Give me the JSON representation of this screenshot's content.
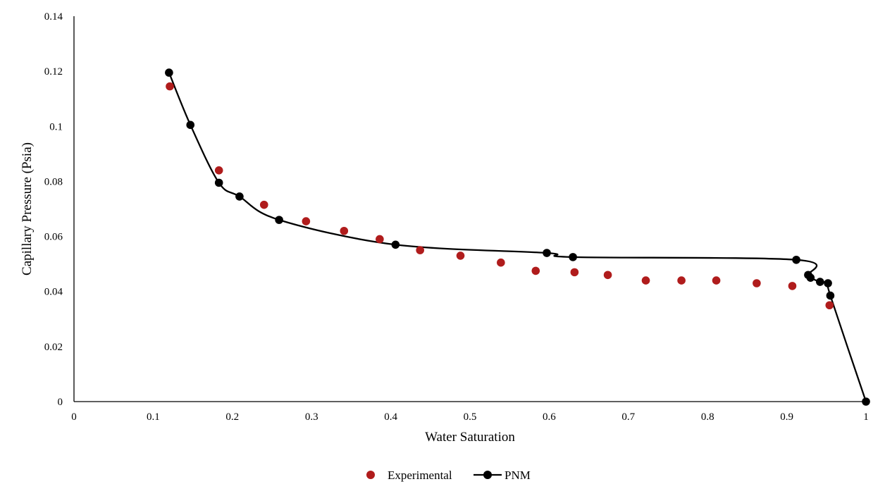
{
  "chart_data": {
    "type": "scatter",
    "title": "",
    "xlabel": "Water Saturation",
    "ylabel": "Capillary Pressure (Psia)",
    "xlim": [
      0,
      1
    ],
    "ylim": [
      0,
      0.14
    ],
    "xticks": [
      "0",
      "0.1",
      "0.2",
      "0.3",
      "0.4",
      "0.5",
      "0.6",
      "0.7",
      "0.8",
      "0.9",
      "1"
    ],
    "yticks": [
      "0",
      "0.02",
      "0.04",
      "0.06",
      "0.08",
      "0.1",
      "0.12",
      "0.14"
    ],
    "grid": false,
    "legend_position": "bottom",
    "series": [
      {
        "name": "Experimental",
        "style": "markers",
        "color": "#b01c1c",
        "x": [
          0.121,
          0.183,
          0.24,
          0.293,
          0.341,
          0.386,
          0.437,
          0.488,
          0.539,
          0.583,
          0.632,
          0.674,
          0.722,
          0.767,
          0.811,
          0.862,
          0.907,
          0.954
        ],
        "y": [
          0.1145,
          0.084,
          0.0715,
          0.0655,
          0.062,
          0.059,
          0.055,
          0.053,
          0.0505,
          0.0475,
          0.047,
          0.046,
          0.044,
          0.044,
          0.044,
          0.043,
          0.042,
          0.035
        ]
      },
      {
        "name": "PNM",
        "style": "smooth-line-markers",
        "color": "#000000",
        "x": [
          0.12,
          0.147,
          0.183,
          0.209,
          0.259,
          0.406,
          0.597,
          0.63,
          0.912,
          0.927,
          0.93,
          0.942,
          0.952,
          0.955,
          1.0
        ],
        "y": [
          0.1195,
          0.1005,
          0.0795,
          0.0745,
          0.066,
          0.057,
          0.054,
          0.0525,
          0.0515,
          0.046,
          0.045,
          0.0435,
          0.043,
          0.0385,
          0.0
        ]
      }
    ]
  }
}
